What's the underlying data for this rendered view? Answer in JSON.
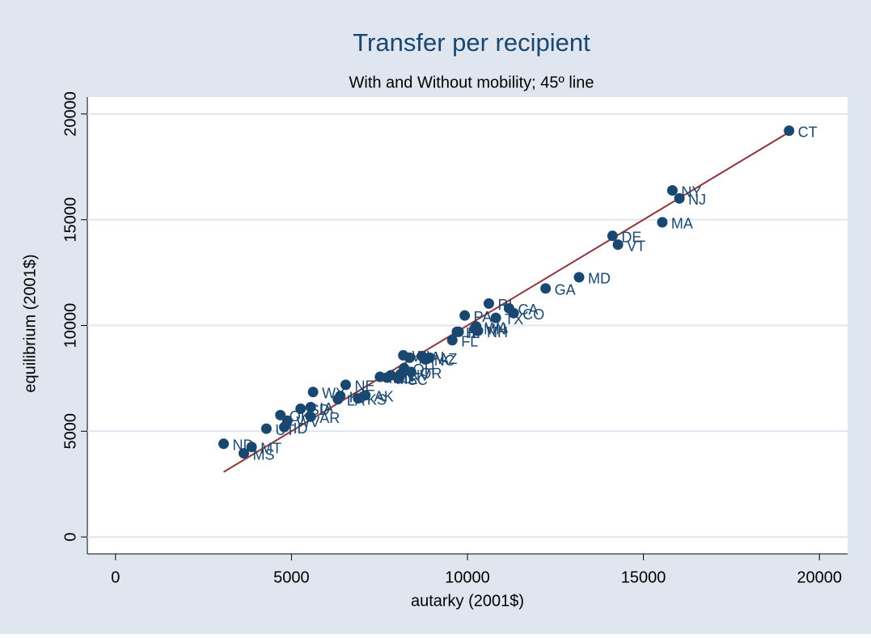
{
  "chart_data": {
    "type": "scatter",
    "title": "Transfer per recipient",
    "subtitle": "With and Without mobility; 45º line",
    "x_label": "autarky (2001$)",
    "y_label": "equilibrium (2001$)",
    "labels": [
      "ND",
      "MS",
      "MT",
      "UT",
      "ID",
      "OK",
      "WV",
      "SD",
      "IA",
      "WY",
      "AR",
      "LA",
      "NE",
      "KY",
      "KS",
      "AK",
      "MO",
      "ME",
      "IN",
      "SC",
      "OH",
      "MI",
      "WI",
      "AL",
      "AZ",
      "NC",
      "OR",
      "NV",
      "FL",
      "IL",
      "HI",
      "PA",
      "MN",
      "NH",
      "WA",
      "TX",
      "RI",
      "CA",
      "CO",
      "GA",
      "MD",
      "DE",
      "VT",
      "MA",
      "NY",
      "NJ",
      "CT"
    ],
    "x": [
      3072,
      3646,
      3867,
      4287,
      4796,
      4685,
      4884,
      5260,
      5547,
      5613,
      5547,
      6320,
      6541,
      6386,
      6895,
      7100,
      7514,
      7713,
      7823,
      8044,
      8199,
      8354,
      8177,
      8707,
      8928,
      8800,
      8400,
      8100,
      9569,
      9750,
      9700,
      9923,
      10210,
      10300,
      10250,
      10807,
      10608,
      11182,
      11315,
      12221,
      13171,
      14122,
      14276,
      15536,
      15823,
      16022,
      19138
    ],
    "values": [
      4407,
      3955,
      4256,
      5122,
      5198,
      5763,
      5499,
      6064,
      6140,
      6855,
      5687,
      6516,
      7194,
      6667,
      6554,
      6700,
      7571,
      7533,
      7646,
      7495,
      7985,
      8475,
      8588,
      8550,
      8475,
      8400,
      7800,
      7700,
      9303,
      9700,
      9700,
      10471,
      9868,
      9750,
      9950,
      10358,
      11036,
      10810,
      10584,
      11751,
      12279,
      14237,
      13823,
      14878,
      16384,
      16008,
      19209
    ],
    "reference_line": {
      "x": [
        3072,
        19138
      ],
      "y": [
        3072,
        19138
      ],
      "color": "#90353b"
    },
    "color": "#1a476f",
    "xlim": [
      -800,
      20800
    ],
    "ylim": [
      -800,
      20800
    ],
    "xticks": [
      0,
      5000,
      10000,
      15000,
      20000
    ],
    "yticks": [
      0,
      5000,
      10000,
      15000,
      20000
    ],
    "grid": true
  }
}
